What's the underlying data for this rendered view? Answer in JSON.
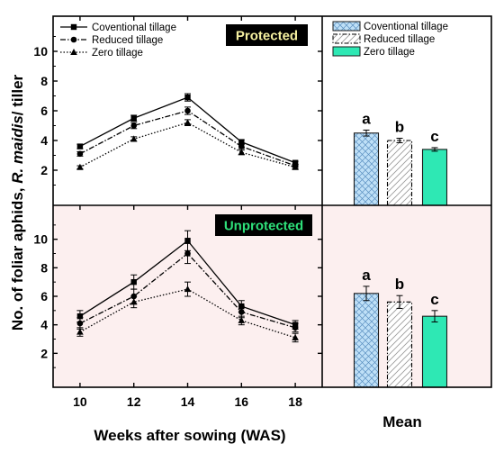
{
  "figure": {
    "ylabel_prefix": "No. of foliar aphids, ",
    "ylabel_species": "R. maidis",
    "ylabel_suffix": "/ tiller",
    "xlabel_left": "Weeks after sowing (WAS)",
    "xlabel_right": "Mean",
    "colors": {
      "protected_bg": "#ffffff",
      "unprotected_bg": "#fcefef",
      "badge_bg": "#000000",
      "badge_protected_text": "#f5f0a0",
      "badge_unprotected_text": "#2ee07a",
      "bar_conventional": "#bfe0f7",
      "bar_reduced": "#ffffff",
      "bar_zero": "#2ee8b4"
    },
    "series_styles": [
      {
        "name": "Coventional tillage",
        "dash": "solid",
        "marker": "square"
      },
      {
        "name": "Reduced tillage",
        "dash": "dashdot",
        "marker": "circle"
      },
      {
        "name": "Zero tillage",
        "dash": "dotted",
        "marker": "triangle"
      }
    ]
  },
  "chart_data": [
    {
      "type": "line",
      "panel": "Protected",
      "badge": "Protected",
      "x": [
        10,
        12,
        14,
        16,
        18
      ],
      "xticks": [
        "10",
        "12",
        "14",
        "16",
        "18"
      ],
      "xlim": [
        9,
        19
      ],
      "ylim": [
        0,
        12
      ],
      "yticks": [
        "2",
        "4",
        "6",
        "8",
        "10"
      ],
      "ytick_values": [
        2,
        4,
        6,
        8,
        10
      ],
      "legend_position": "top-left",
      "series": [
        {
          "name": "Coventional tillage",
          "values": [
            3.6,
            5.5,
            6.9,
            3.9,
            2.5
          ],
          "errors": [
            0.15,
            0.2,
            0.25,
            0.15,
            0.1
          ]
        },
        {
          "name": "Reduced tillage",
          "values": [
            3.1,
            5.0,
            6.0,
            3.6,
            2.3
          ],
          "errors": [
            0.15,
            0.2,
            0.25,
            0.15,
            0.1
          ]
        },
        {
          "name": "Zero tillage",
          "values": [
            2.2,
            4.1,
            5.2,
            3.2,
            2.2
          ],
          "errors": [
            0.1,
            0.15,
            0.2,
            0.15,
            0.1
          ]
        }
      ]
    },
    {
      "type": "bar",
      "panel": "Protected mean",
      "categories": [
        "Coventional tillage",
        "Reduced tillage",
        "Zero tillage"
      ],
      "values": [
        4.5,
        4.0,
        3.4
      ],
      "errors": [
        0.2,
        0.15,
        0.12
      ],
      "significance": [
        "a",
        "b",
        "c"
      ],
      "ylim": [
        0,
        12
      ],
      "legend_position": "top"
    },
    {
      "type": "line",
      "panel": "Unprotected",
      "badge": "Unprotected",
      "x": [
        10,
        12,
        14,
        16,
        18
      ],
      "xticks": [
        "10",
        "12",
        "14",
        "16",
        "18"
      ],
      "xlim": [
        9,
        19
      ],
      "ylim": [
        0,
        12
      ],
      "yticks": [
        "2",
        "4",
        "6",
        "8",
        "10"
      ],
      "ytick_values": [
        2,
        4,
        6,
        8,
        10
      ],
      "series": [
        {
          "name": "Coventional tillage",
          "values": [
            4.6,
            7.0,
            9.9,
            5.3,
            4.0
          ],
          "errors": [
            0.4,
            0.5,
            0.7,
            0.4,
            0.3
          ]
        },
        {
          "name": "Reduced tillage",
          "values": [
            4.1,
            6.0,
            9.0,
            4.9,
            3.8
          ],
          "errors": [
            0.4,
            0.5,
            0.7,
            0.4,
            0.3
          ]
        },
        {
          "name": "Zero tillage",
          "values": [
            3.5,
            5.6,
            6.5,
            4.3,
            3.1
          ],
          "errors": [
            0.3,
            0.4,
            0.5,
            0.3,
            0.3
          ]
        }
      ]
    },
    {
      "type": "bar",
      "panel": "Unprotected mean",
      "categories": [
        "Coventional tillage",
        "Reduced tillage",
        "Zero tillage"
      ],
      "values": [
        6.2,
        5.6,
        4.6
      ],
      "errors": [
        0.5,
        0.45,
        0.4
      ],
      "significance": [
        "a",
        "b",
        "c"
      ],
      "ylim": [
        0,
        12
      ]
    }
  ]
}
